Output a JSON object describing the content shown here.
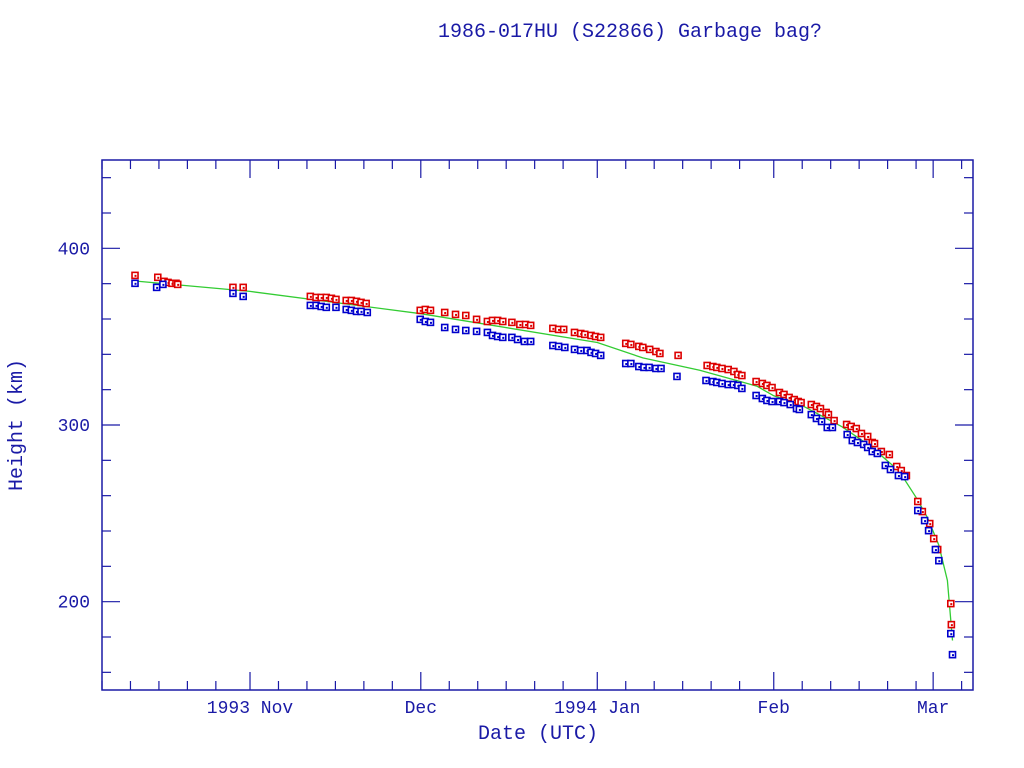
{
  "chart_data": {
    "type": "scatter",
    "title": "1986-017HU (S22866) Garbage bag?",
    "xlabel": "Date (UTC)",
    "ylabel": "Height (km)",
    "x_origin": "1993-10-01",
    "xlim": [
      5,
      158
    ],
    "ylim": [
      150,
      450
    ],
    "grid": false,
    "x_ticks": [
      {
        "value": 31,
        "label": "1993 Nov"
      },
      {
        "value": 61,
        "label": "Dec"
      },
      {
        "value": 92,
        "label": "1994 Jan"
      },
      {
        "value": 123,
        "label": "Feb"
      },
      {
        "value": 151,
        "label": "Mar"
      }
    ],
    "y_ticks": [
      {
        "value": 200,
        "label": "200"
      },
      {
        "value": 300,
        "label": "300"
      },
      {
        "value": 400,
        "label": "400"
      }
    ],
    "colors": {
      "axis": "#1a1aa6",
      "apogee": "#dd0000",
      "perigee": "#0000cc",
      "fit": "#33cc33"
    },
    "series": [
      {
        "name": "apogee",
        "color": "#dd0000",
        "points": [
          [
            10.8,
            384.7
          ],
          [
            14.8,
            383.6
          ],
          [
            15.9,
            381.3
          ],
          [
            16.6,
            380.7
          ],
          [
            17.3,
            380.2
          ],
          [
            18.0,
            380.2
          ],
          [
            18.3,
            379.6
          ],
          [
            28.0,
            377.9
          ],
          [
            29.8,
            377.9
          ],
          [
            41.6,
            372.8
          ],
          [
            42.6,
            372.2
          ],
          [
            43.5,
            372.2
          ],
          [
            44.4,
            372.2
          ],
          [
            45.3,
            371.7
          ],
          [
            46.1,
            371.1
          ],
          [
            47.9,
            370.5
          ],
          [
            48.8,
            370.5
          ],
          [
            49.7,
            370.0
          ],
          [
            50.5,
            369.4
          ],
          [
            51.4,
            368.8
          ],
          [
            60.9,
            364.9
          ],
          [
            61.8,
            365.4
          ],
          [
            62.7,
            364.9
          ],
          [
            65.2,
            363.7
          ],
          [
            67.1,
            362.6
          ],
          [
            68.9,
            362.0
          ],
          [
            70.8,
            359.8
          ],
          [
            72.7,
            358.6
          ],
          [
            73.6,
            359.2
          ],
          [
            74.5,
            359.2
          ],
          [
            75.4,
            358.6
          ],
          [
            77.0,
            358.1
          ],
          [
            78.4,
            356.9
          ],
          [
            79.4,
            356.9
          ],
          [
            80.3,
            356.4
          ],
          [
            84.2,
            354.7
          ],
          [
            85.2,
            354.1
          ],
          [
            86.1,
            354.1
          ],
          [
            88.0,
            352.4
          ],
          [
            89.1,
            351.8
          ],
          [
            89.8,
            351.3
          ],
          [
            90.9,
            350.7
          ],
          [
            91.7,
            350.1
          ],
          [
            92.6,
            349.6
          ],
          [
            97.0,
            346.2
          ],
          [
            97.9,
            345.6
          ],
          [
            99.3,
            344.5
          ],
          [
            100.0,
            343.9
          ],
          [
            101.2,
            342.8
          ],
          [
            102.3,
            341.6
          ],
          [
            103.0,
            340.5
          ],
          [
            106.2,
            339.4
          ],
          [
            111.3,
            333.7
          ],
          [
            112.3,
            333.1
          ],
          [
            113.0,
            332.6
          ],
          [
            113.9,
            332.0
          ],
          [
            115.0,
            331.4
          ],
          [
            116.0,
            330.3
          ],
          [
            116.7,
            328.6
          ],
          [
            117.4,
            328.0
          ],
          [
            119.9,
            324.6
          ],
          [
            121.0,
            323.5
          ],
          [
            121.8,
            322.4
          ],
          [
            122.7,
            321.2
          ],
          [
            124.0,
            318.4
          ],
          [
            124.8,
            317.3
          ],
          [
            125.7,
            315.6
          ],
          [
            126.6,
            314.4
          ],
          [
            127.3,
            313.3
          ],
          [
            127.8,
            312.7
          ],
          [
            129.6,
            311.6
          ],
          [
            130.5,
            310.5
          ],
          [
            131.2,
            309.3
          ],
          [
            132.2,
            307.1
          ],
          [
            132.6,
            305.9
          ],
          [
            133.6,
            302.5
          ],
          [
            135.8,
            300.3
          ],
          [
            136.6,
            299.2
          ],
          [
            137.5,
            298.0
          ],
          [
            138.4,
            295.2
          ],
          [
            139.5,
            293.5
          ],
          [
            140.3,
            290.1
          ],
          [
            140.7,
            289.5
          ],
          [
            141.9,
            285.0
          ],
          [
            143.3,
            283.3
          ],
          [
            144.6,
            276.5
          ],
          [
            145.4,
            274.2
          ],
          [
            146.3,
            271.4
          ],
          [
            148.3,
            256.7
          ],
          [
            149.1,
            251.0
          ],
          [
            150.4,
            244.2
          ],
          [
            151.1,
            235.7
          ],
          [
            151.8,
            229.5
          ],
          [
            154.1,
            198.9
          ],
          [
            154.2,
            187.0
          ]
        ]
      },
      {
        "name": "perigee",
        "color": "#0000cc",
        "points": [
          [
            10.8,
            380.2
          ],
          [
            14.6,
            377.9
          ],
          [
            15.7,
            379.6
          ],
          [
            28.0,
            374.5
          ],
          [
            29.8,
            372.8
          ],
          [
            41.6,
            367.7
          ],
          [
            42.6,
            367.7
          ],
          [
            43.5,
            367.1
          ],
          [
            44.4,
            366.6
          ],
          [
            46.1,
            366.6
          ],
          [
            47.9,
            365.4
          ],
          [
            48.8,
            364.9
          ],
          [
            49.7,
            364.3
          ],
          [
            50.5,
            364.3
          ],
          [
            51.6,
            363.7
          ],
          [
            60.9,
            359.8
          ],
          [
            61.8,
            358.6
          ],
          [
            62.7,
            358.1
          ],
          [
            65.2,
            355.2
          ],
          [
            67.1,
            354.1
          ],
          [
            68.9,
            353.5
          ],
          [
            70.8,
            353.0
          ],
          [
            72.7,
            352.4
          ],
          [
            73.6,
            350.7
          ],
          [
            74.5,
            350.1
          ],
          [
            75.4,
            349.6
          ],
          [
            77.0,
            349.6
          ],
          [
            78.0,
            348.4
          ],
          [
            79.2,
            347.3
          ],
          [
            80.3,
            347.3
          ],
          [
            84.2,
            345.0
          ],
          [
            85.2,
            344.5
          ],
          [
            86.3,
            343.9
          ],
          [
            88.0,
            342.8
          ],
          [
            89.1,
            342.2
          ],
          [
            90.2,
            342.2
          ],
          [
            90.9,
            341.1
          ],
          [
            91.7,
            340.5
          ],
          [
            92.6,
            339.4
          ],
          [
            97.0,
            334.8
          ],
          [
            97.9,
            334.8
          ],
          [
            99.3,
            333.1
          ],
          [
            100.2,
            332.6
          ],
          [
            101.1,
            332.6
          ],
          [
            102.3,
            332.0
          ],
          [
            103.2,
            332.0
          ],
          [
            106.0,
            327.5
          ],
          [
            111.1,
            325.2
          ],
          [
            112.3,
            324.6
          ],
          [
            113.0,
            324.1
          ],
          [
            113.9,
            323.5
          ],
          [
            115.0,
            322.9
          ],
          [
            115.9,
            322.9
          ],
          [
            116.7,
            322.4
          ],
          [
            117.4,
            320.7
          ],
          [
            119.9,
            316.7
          ],
          [
            121.0,
            315.0
          ],
          [
            121.8,
            313.9
          ],
          [
            122.7,
            313.3
          ],
          [
            124.0,
            313.3
          ],
          [
            124.8,
            312.7
          ],
          [
            125.9,
            311.6
          ],
          [
            127.0,
            309.3
          ],
          [
            127.5,
            308.8
          ],
          [
            129.6,
            305.9
          ],
          [
            130.5,
            303.7
          ],
          [
            131.4,
            302.0
          ],
          [
            132.4,
            298.6
          ],
          [
            133.3,
            298.6
          ],
          [
            135.9,
            294.6
          ],
          [
            136.8,
            291.2
          ],
          [
            137.7,
            290.1
          ],
          [
            138.8,
            289.0
          ],
          [
            139.5,
            287.3
          ],
          [
            140.3,
            285.0
          ],
          [
            141.2,
            283.9
          ],
          [
            142.6,
            277.1
          ],
          [
            143.5,
            274.8
          ],
          [
            144.9,
            271.4
          ],
          [
            146.0,
            270.8
          ],
          [
            148.3,
            251.6
          ],
          [
            149.5,
            245.9
          ],
          [
            150.2,
            240.2
          ],
          [
            151.4,
            229.5
          ],
          [
            152.0,
            223.2
          ],
          [
            154.1,
            181.9
          ],
          [
            154.4,
            170.0
          ]
        ]
      },
      {
        "name": "fit",
        "color": "#33cc33",
        "type": "line",
        "points": [
          [
            10.8,
            381.5
          ],
          [
            31,
            375.6
          ],
          [
            61,
            363.0
          ],
          [
            92,
            346.7
          ],
          [
            100,
            338.0
          ],
          [
            110,
            331.0
          ],
          [
            120,
            322.0
          ],
          [
            123,
            316.5
          ],
          [
            128,
            311.0
          ],
          [
            135,
            299.0
          ],
          [
            140,
            288.0
          ],
          [
            145,
            274.0
          ],
          [
            148,
            259.0
          ],
          [
            150,
            247.6
          ],
          [
            152,
            232.0
          ],
          [
            153.5,
            212.0
          ],
          [
            154.4,
            178.0
          ]
        ]
      }
    ]
  }
}
